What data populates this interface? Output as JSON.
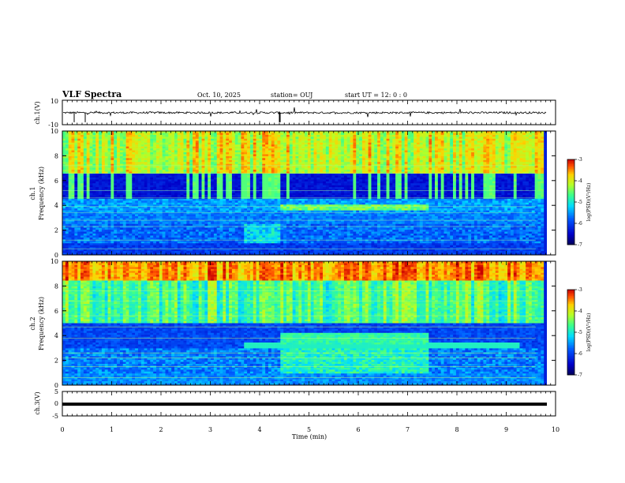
{
  "header": {
    "title": "VLF Spectra",
    "date": "Oct. 10, 2025",
    "station": "station= OUJ",
    "start_time": "start  UT =   12: 0  : 0"
  },
  "chart_data": [
    {
      "type": "line",
      "panel": "ch1-waveform",
      "ylabel": "ch.1(V)",
      "ylim": [
        -10,
        10
      ],
      "ytick_labels": [
        "10",
        "-10"
      ],
      "description_values_baseline": 0
    },
    {
      "type": "heatmap",
      "panel": "ch1-spectrogram",
      "ylabel_line1": "ch.1",
      "ylabel_line2": "Frequency (kHz)",
      "ylim": [
        0,
        10
      ],
      "yticks": [
        0,
        2,
        4,
        6,
        8,
        10
      ],
      "colorbar": {
        "label": "log(PSD)(V²/Hz)",
        "range": [
          -7,
          -3
        ],
        "ticks": [
          "-3",
          "-4",
          "-5",
          "-6",
          "-7"
        ]
      }
    },
    {
      "type": "heatmap",
      "panel": "ch2-spectrogram",
      "ylabel_line1": "ch.2",
      "ylabel_line2": "Frequency (kHz)",
      "ylim": [
        0,
        10
      ],
      "yticks": [
        0,
        2,
        4,
        6,
        8,
        10
      ],
      "colorbar": {
        "label": "log(PSD)(V²/Hz)",
        "range": [
          -7,
          -3
        ],
        "ticks": [
          "-3",
          "-4",
          "-5",
          "-6",
          "-7"
        ]
      }
    },
    {
      "type": "line",
      "panel": "ch3-waveform",
      "ylabel": "ch.3(V)",
      "ylim": [
        -5,
        5
      ],
      "yticks": [
        -5,
        0,
        5
      ],
      "ytick_labels": [
        "5",
        "0",
        "-5"
      ],
      "level": -0.2
    }
  ],
  "xaxis": {
    "label": "Time  (min)",
    "range": [
      0,
      10
    ],
    "ticks": [
      "0",
      "1",
      "2",
      "3",
      "4",
      "5",
      "6",
      "7",
      "8",
      "9",
      "10"
    ]
  },
  "colors": {
    "frame": "#000000",
    "background": "#ffffff"
  }
}
